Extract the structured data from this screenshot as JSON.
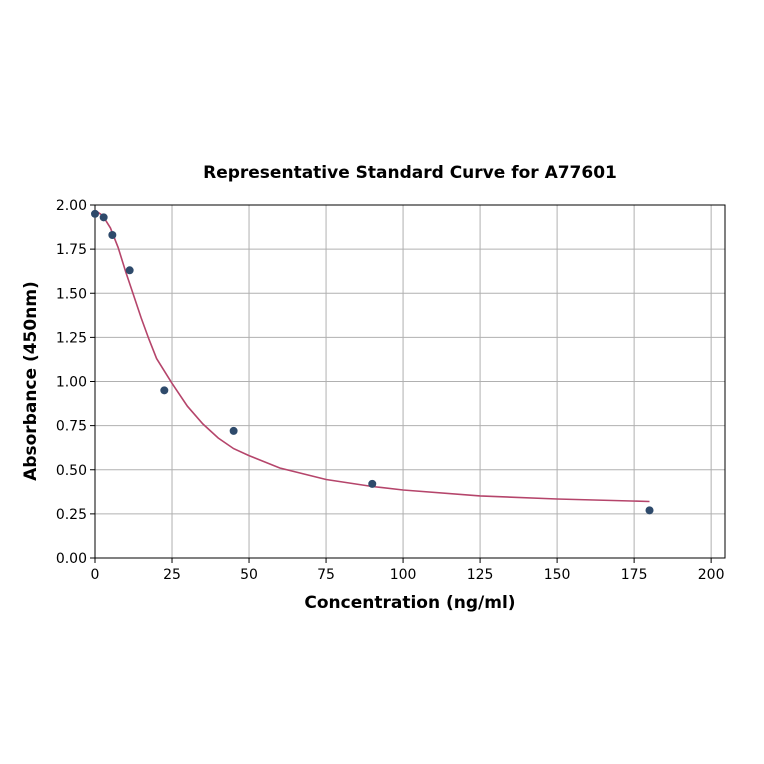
{
  "chart_data": {
    "type": "scatter",
    "title": "Representative Standard Curve for A77601",
    "xlabel": "Concentration (ng/ml)",
    "ylabel": "Absorbance (450nm)",
    "xlim": [
      0,
      204.5
    ],
    "ylim": [
      0,
      2.0
    ],
    "xticks": [
      0,
      25,
      50,
      75,
      100,
      125,
      150,
      175,
      200
    ],
    "yticks": [
      "0.00",
      "0.25",
      "0.50",
      "0.75",
      "1.00",
      "1.25",
      "1.50",
      "1.75",
      "2.00"
    ],
    "grid": true,
    "points": {
      "x": [
        0,
        2.81,
        5.63,
        11.25,
        22.5,
        45,
        90,
        180
      ],
      "y": [
        1.95,
        1.93,
        1.83,
        1.63,
        0.95,
        0.72,
        0.42,
        0.27
      ],
      "color": "#2e4a6b"
    },
    "fit_curve": {
      "x": [
        0,
        2.5,
        5,
        7.5,
        10,
        12.5,
        15,
        17.5,
        20,
        25,
        30,
        35,
        40,
        45,
        50,
        60,
        75,
        90,
        100,
        125,
        150,
        180
      ],
      "y": [
        1.97,
        1.94,
        1.87,
        1.76,
        1.62,
        1.49,
        1.36,
        1.24,
        1.13,
        0.99,
        0.86,
        0.76,
        0.68,
        0.62,
        0.58,
        0.51,
        0.445,
        0.405,
        0.385,
        0.352,
        0.334,
        0.32
      ],
      "color": "#b5456b"
    }
  }
}
